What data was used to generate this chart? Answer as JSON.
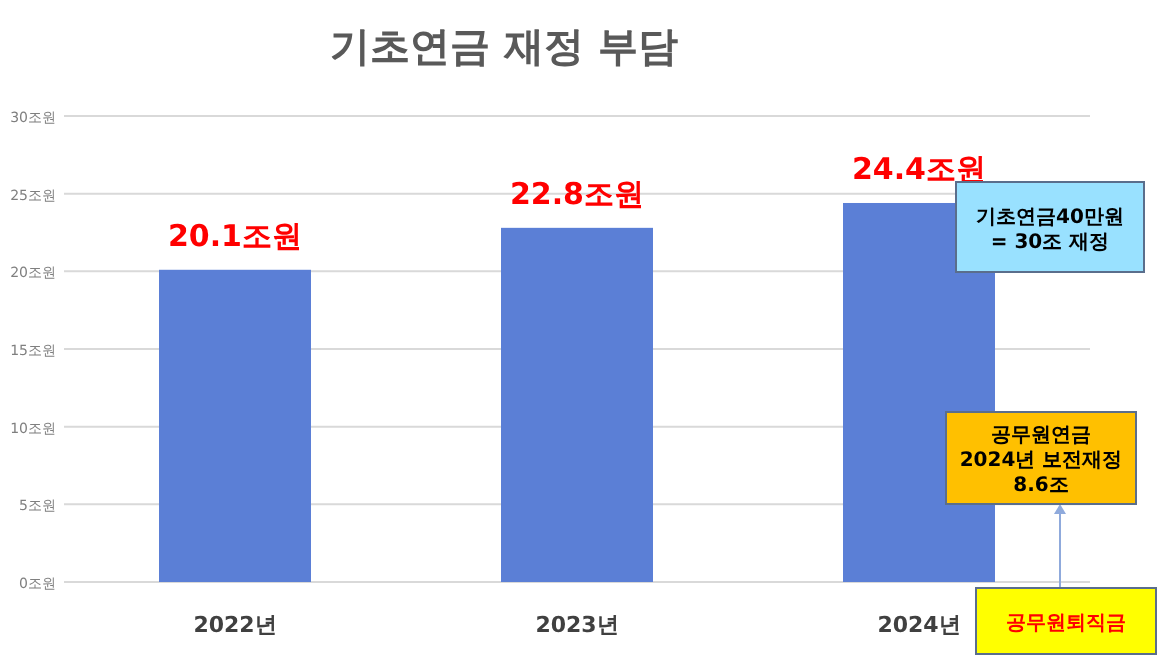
{
  "chart_data": {
    "type": "bar",
    "title": "기초연금 재정 부담",
    "categories": [
      "2022년",
      "2023년",
      "2024년"
    ],
    "values": [
      20.1,
      22.8,
      24.4
    ],
    "color": "#5b7fd6",
    "value_labels": [
      "20.1조원",
      "22.8조원",
      "24.4조원"
    ],
    "ylim": [
      0,
      30
    ],
    "yticks": [
      {
        "value": 0,
        "label": "0조원"
      },
      {
        "value": 5,
        "label": "5조원"
      },
      {
        "value": 10,
        "label": "10조원"
      },
      {
        "value": 15,
        "label": "15조원"
      },
      {
        "value": 20,
        "label": "20조원"
      },
      {
        "value": 25,
        "label": "25조원"
      },
      {
        "value": 30,
        "label": "30조원"
      }
    ],
    "grid": "y",
    "annotations": [
      "기초연금40만원\n= 30조 재정",
      "공무원연금\n2024년 보전재정\n8.6조",
      "공무원퇴직금"
    ]
  }
}
